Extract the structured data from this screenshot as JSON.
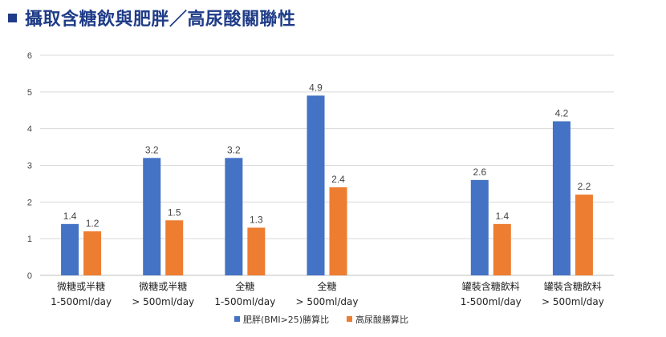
{
  "title": "攝取含糖飲與肥胖／高尿酸關聯性",
  "chart_data": {
    "type": "bar",
    "title": "攝取含糖飲與肥胖／高尿酸關聯性",
    "categories": [
      [
        "微糖或半糖",
        "1-500ml/day"
      ],
      [
        "微糖或半糖",
        "> 500ml/day"
      ],
      [
        "全糖",
        "1-500ml/day"
      ],
      [
        "全糖",
        "> 500ml/day"
      ],
      [
        "",
        ""
      ],
      [
        "罐裝含糖飲料",
        "1-500ml/day"
      ],
      [
        "罐裝含糖飲料",
        "> 500ml/day"
      ]
    ],
    "series": [
      {
        "name": "肥胖(BMI>25)勝算比",
        "color": "#4472c4",
        "values": [
          1.4,
          3.2,
          3.2,
          4.9,
          null,
          2.6,
          4.2
        ]
      },
      {
        "name": "高尿酸勝算比",
        "color": "#ed7d31",
        "values": [
          1.2,
          1.5,
          1.3,
          2.4,
          null,
          1.4,
          2.2
        ]
      }
    ],
    "yticks": [
      "0",
      "1",
      "2",
      "3",
      "4",
      "5",
      "6"
    ],
    "ylim": [
      0,
      6
    ],
    "grid": true,
    "legend": "bottom",
    "xlabel": "",
    "ylabel": ""
  }
}
